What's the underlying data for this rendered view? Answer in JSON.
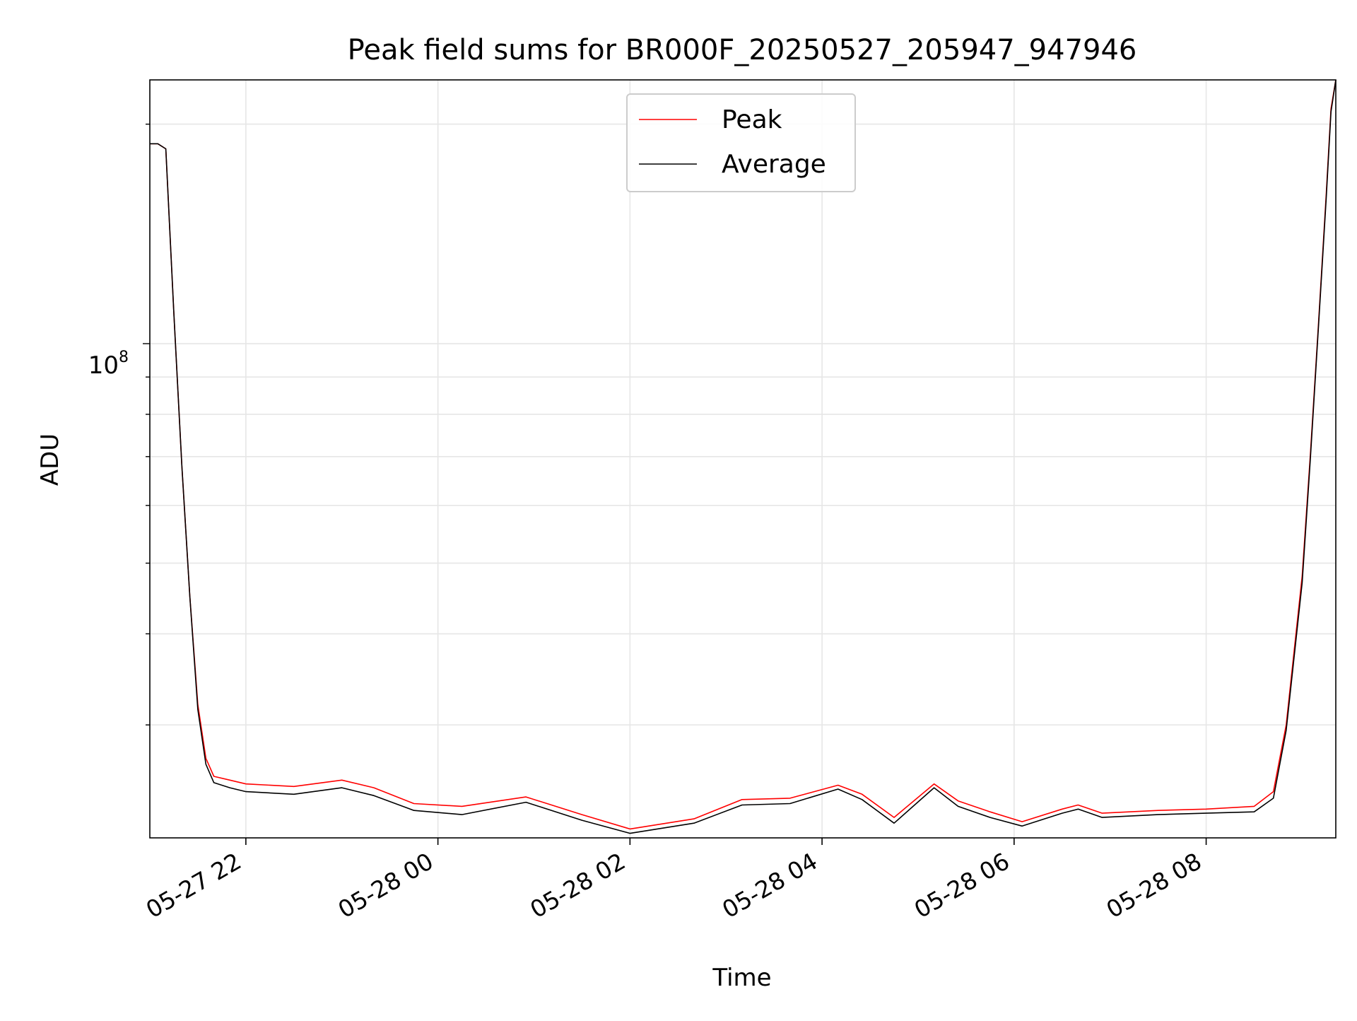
{
  "chart_data": {
    "type": "line",
    "title": "Peak field sums for BR000F_20250527_205947_947946",
    "xlabel": "Time",
    "ylabel": "ADU",
    "yscale": "log",
    "grid": true,
    "legend_position": "upper center",
    "x_ticks": [
      "05-27 22",
      "05-28 00",
      "05-28 02",
      "05-28 04",
      "05-28 06",
      "05-28 08"
    ],
    "y_tick_label": {
      "base": "10",
      "exponent": "8"
    },
    "xlim": [
      "2025-05-27T21:00",
      "2025-05-28T09:21"
    ],
    "ylim": [
      21000000,
      230000000
    ],
    "series": [
      {
        "name": "Peak",
        "color": "#ff0000",
        "points": [
          [
            "2025-05-27T21:00",
            188000000
          ],
          [
            "2025-05-27T21:05",
            188000000
          ],
          [
            "2025-05-27T21:10",
            185000000
          ],
          [
            "2025-05-27T21:15",
            110000000
          ],
          [
            "2025-05-27T21:20",
            68000000
          ],
          [
            "2025-05-27T21:25",
            45000000
          ],
          [
            "2025-05-27T21:30",
            32000000
          ],
          [
            "2025-05-27T21:35",
            27000000
          ],
          [
            "2025-05-27T21:40",
            25500000
          ],
          [
            "2025-05-27T21:50",
            25200000
          ],
          [
            "2025-05-27T22:00",
            24900000
          ],
          [
            "2025-05-27T22:30",
            24700000
          ],
          [
            "2025-05-27T23:00",
            25200000
          ],
          [
            "2025-05-27T23:20",
            24600000
          ],
          [
            "2025-05-27T23:45",
            23400000
          ],
          [
            "2025-05-28T00:15",
            23200000
          ],
          [
            "2025-05-28T00:55",
            23900000
          ],
          [
            "2025-05-28T01:30",
            22600000
          ],
          [
            "2025-05-28T02:00",
            21600000
          ],
          [
            "2025-05-28T02:40",
            22300000
          ],
          [
            "2025-05-28T03:10",
            23700000
          ],
          [
            "2025-05-28T03:40",
            23800000
          ],
          [
            "2025-05-28T04:10",
            24800000
          ],
          [
            "2025-05-28T04:25",
            24100000
          ],
          [
            "2025-05-28T04:45",
            22400000
          ],
          [
            "2025-05-28T05:10",
            24900000
          ],
          [
            "2025-05-28T05:25",
            23600000
          ],
          [
            "2025-05-28T05:45",
            22800000
          ],
          [
            "2025-05-28T06:05",
            22100000
          ],
          [
            "2025-05-28T06:30",
            23000000
          ],
          [
            "2025-05-28T06:40",
            23300000
          ],
          [
            "2025-05-28T06:55",
            22700000
          ],
          [
            "2025-05-28T07:30",
            22900000
          ],
          [
            "2025-05-28T08:00",
            23000000
          ],
          [
            "2025-05-28T08:30",
            23200000
          ],
          [
            "2025-05-28T08:42",
            24300000
          ],
          [
            "2025-05-28T08:50",
            30000000
          ],
          [
            "2025-05-28T09:00",
            48000000
          ],
          [
            "2025-05-28T09:05",
            70000000
          ],
          [
            "2025-05-28T09:10",
            105000000
          ],
          [
            "2025-05-28T09:15",
            160000000
          ],
          [
            "2025-05-28T09:18",
            210000000
          ],
          [
            "2025-05-28T09:21",
            230000000
          ]
        ]
      },
      {
        "name": "Average",
        "color": "#000000",
        "points": [
          [
            "2025-05-27T21:00",
            188000000
          ],
          [
            "2025-05-27T21:05",
            188000000
          ],
          [
            "2025-05-27T21:10",
            185000000
          ],
          [
            "2025-05-27T21:15",
            110000000
          ],
          [
            "2025-05-27T21:20",
            68000000
          ],
          [
            "2025-05-27T21:25",
            45000000
          ],
          [
            "2025-05-27T21:30",
            31500000
          ],
          [
            "2025-05-27T21:35",
            26500000
          ],
          [
            "2025-05-27T21:40",
            25000000
          ],
          [
            "2025-05-27T21:50",
            24600000
          ],
          [
            "2025-05-27T22:00",
            24300000
          ],
          [
            "2025-05-27T22:30",
            24100000
          ],
          [
            "2025-05-27T23:00",
            24600000
          ],
          [
            "2025-05-27T23:20",
            24000000
          ],
          [
            "2025-05-27T23:45",
            22900000
          ],
          [
            "2025-05-28T00:15",
            22600000
          ],
          [
            "2025-05-28T00:55",
            23500000
          ],
          [
            "2025-05-28T01:30",
            22200000
          ],
          [
            "2025-05-28T02:00",
            21300000
          ],
          [
            "2025-05-28T02:40",
            22000000
          ],
          [
            "2025-05-28T03:10",
            23300000
          ],
          [
            "2025-05-28T03:40",
            23400000
          ],
          [
            "2025-05-28T04:10",
            24500000
          ],
          [
            "2025-05-28T04:25",
            23700000
          ],
          [
            "2025-05-28T04:45",
            22000000
          ],
          [
            "2025-05-28T05:10",
            24600000
          ],
          [
            "2025-05-28T05:25",
            23200000
          ],
          [
            "2025-05-28T05:45",
            22400000
          ],
          [
            "2025-05-28T06:05",
            21800000
          ],
          [
            "2025-05-28T06:30",
            22700000
          ],
          [
            "2025-05-28T06:40",
            23000000
          ],
          [
            "2025-05-28T06:55",
            22400000
          ],
          [
            "2025-05-28T07:30",
            22600000
          ],
          [
            "2025-05-28T08:00",
            22700000
          ],
          [
            "2025-05-28T08:30",
            22800000
          ],
          [
            "2025-05-28T08:42",
            23800000
          ],
          [
            "2025-05-28T08:50",
            29500000
          ],
          [
            "2025-05-28T09:00",
            47000000
          ],
          [
            "2025-05-28T09:05",
            69000000
          ],
          [
            "2025-05-28T09:10",
            104000000
          ],
          [
            "2025-05-28T09:15",
            158000000
          ],
          [
            "2025-05-28T09:18",
            208000000
          ],
          [
            "2025-05-28T09:21",
            230000000
          ]
        ]
      }
    ]
  }
}
